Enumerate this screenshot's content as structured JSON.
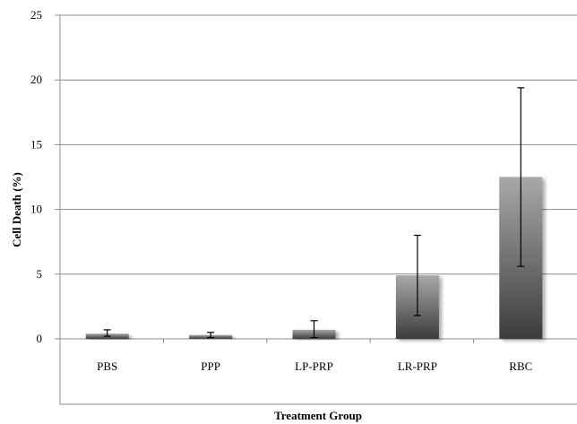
{
  "chart_data": {
    "type": "bar",
    "categories": [
      "PBS",
      "PPP",
      "LP-PRP",
      "LR-PRP",
      "RBC"
    ],
    "values": [
      0.4,
      0.3,
      0.7,
      4.9,
      12.5
    ],
    "error_low": [
      0.2,
      0.1,
      0.1,
      1.8,
      5.6
    ],
    "error_high": [
      0.7,
      0.5,
      1.4,
      8.0,
      19.4
    ],
    "xlabel": "Treatment Group",
    "ylabel": "Cell Death (%)",
    "ylim": [
      0,
      25
    ],
    "yticks": [
      "0",
      "5",
      "10",
      "15",
      "20",
      "25"
    ],
    "grid": true,
    "colors": {
      "bar_top": "#a8a8a8",
      "bar_bottom": "#3c3c3c",
      "grid": "#8c8c8c"
    }
  }
}
